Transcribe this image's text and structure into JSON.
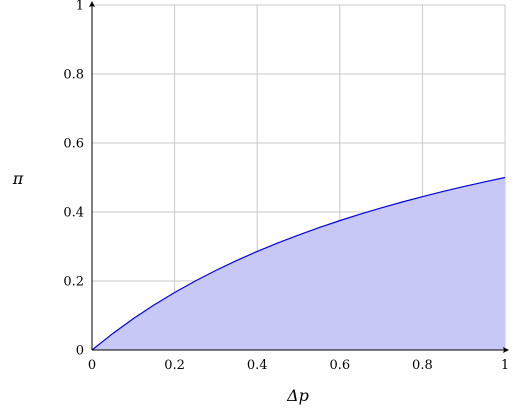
{
  "chart_data": {
    "type": "area",
    "title": "",
    "xlabel": "Δp",
    "ylabel": "π",
    "xlim": [
      0,
      1
    ],
    "ylim": [
      0,
      1
    ],
    "grid": true,
    "xticks": [
      "0",
      "0.2",
      "0.4",
      "0.6",
      "0.8",
      "1"
    ],
    "yticks": [
      "0",
      "0.2",
      "0.4",
      "0.6",
      "0.8",
      "1"
    ],
    "series": [
      {
        "x": [
          0,
          0.05,
          0.1,
          0.15,
          0.2,
          0.25,
          0.3,
          0.35,
          0.4,
          0.45,
          0.5,
          0.55,
          0.6,
          0.65,
          0.7,
          0.75,
          0.8,
          0.85,
          0.9,
          0.95,
          1.0
        ],
        "y": [
          0,
          0.0476,
          0.0909,
          0.1304,
          0.1667,
          0.2,
          0.2308,
          0.2593,
          0.2857,
          0.3103,
          0.3333,
          0.3548,
          0.375,
          0.3939,
          0.4118,
          0.4286,
          0.4444,
          0.4595,
          0.4737,
          0.4872,
          0.5
        ]
      }
    ],
    "colors": {
      "line": "#0000ee",
      "fill": "#c8c8f6"
    }
  }
}
